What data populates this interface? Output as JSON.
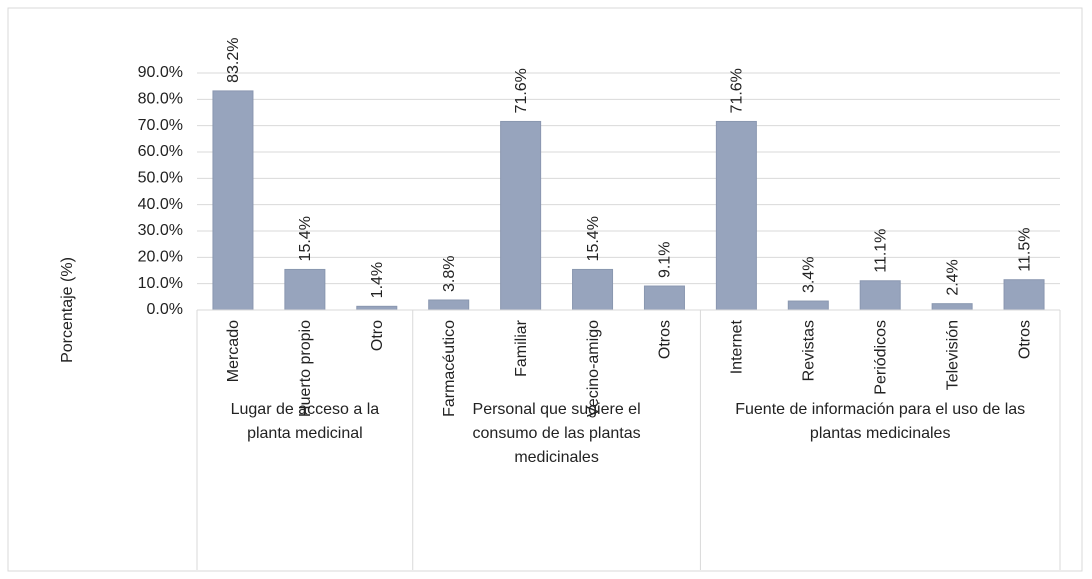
{
  "chart_data": {
    "type": "bar",
    "ylabel": "Porcentaje (%)",
    "color": "#97a4bd",
    "grid": true,
    "ylim": [
      0,
      90
    ],
    "yticks": [
      {
        "value": 0,
        "label": "0.0%"
      },
      {
        "value": 10,
        "label": "10.0%"
      },
      {
        "value": 20,
        "label": "20.0%"
      },
      {
        "value": 30,
        "label": "30.0%"
      },
      {
        "value": 40,
        "label": "40.0%"
      },
      {
        "value": 50,
        "label": "50.0%"
      },
      {
        "value": 60,
        "label": "60.0%"
      },
      {
        "value": 70,
        "label": "70.0%"
      },
      {
        "value": 80,
        "label": "80.0%"
      },
      {
        "value": 90,
        "label": "90.0%"
      }
    ],
    "groups": [
      {
        "label": "Lugar de acceso a la planta medicinal",
        "categories": [
          "Mercado",
          "Huerto propio",
          "Otro"
        ],
        "values": [
          83.2,
          15.4,
          1.4
        ],
        "value_labels": [
          "83.2%",
          "15.4%",
          "1.4%"
        ]
      },
      {
        "label": "Personal que sugiere el consumo de las plantas medicinales",
        "categories": [
          "Farmacéutico",
          "Familiar",
          "Vecino-amigo",
          "Otros"
        ],
        "values": [
          3.8,
          71.6,
          15.4,
          9.1
        ],
        "value_labels": [
          "3.8%",
          "71.6%",
          "15.4%",
          "9.1%"
        ]
      },
      {
        "label": "Fuente de información para el uso de las plantas medicinales",
        "categories": [
          "Internet",
          "Revistas",
          "Periódicos",
          "Televisión",
          "Otros"
        ],
        "values": [
          71.6,
          3.4,
          11.1,
          2.4,
          11.5
        ],
        "value_labels": [
          "71.6%",
          "3.4%",
          "11.1%",
          "2.4%",
          "11.5%"
        ]
      }
    ]
  }
}
